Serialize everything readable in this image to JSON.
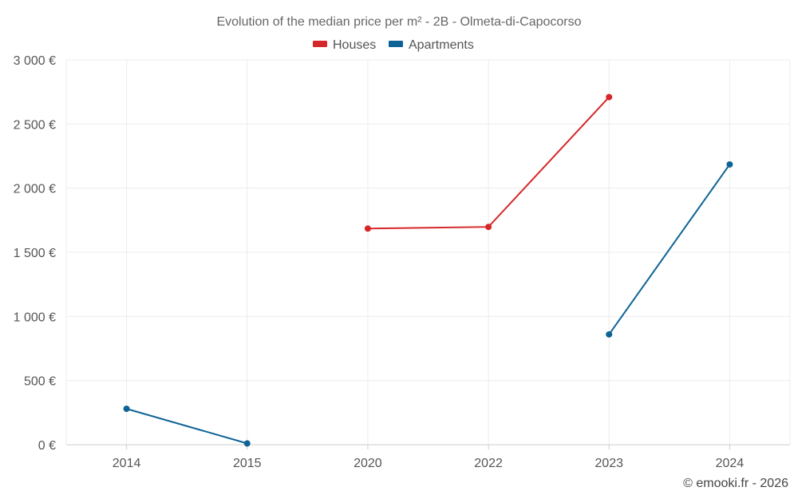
{
  "chart_data": {
    "type": "line",
    "title": "Evolution of the median price per m² - 2B - Olmeta-di-Capocorso",
    "categories": [
      "2014",
      "2015",
      "2020",
      "2022",
      "2023",
      "2024"
    ],
    "yticks": [
      "0 €",
      "500 €",
      "1 000 €",
      "1 500 €",
      "2 000 €",
      "2 500 €",
      "3 000 €"
    ],
    "ylim": [
      0,
      3000
    ],
    "grid": true,
    "legend_position": "top-center",
    "series": [
      {
        "name": "Houses",
        "color": "#d62728",
        "values": [
          null,
          null,
          1685,
          1698,
          2710,
          null
        ]
      },
      {
        "name": "Apartments",
        "color": "#0e6396",
        "values": [
          280,
          10,
          null,
          null,
          860,
          2185
        ]
      }
    ]
  },
  "credit": "© emooki.fr - 2026"
}
